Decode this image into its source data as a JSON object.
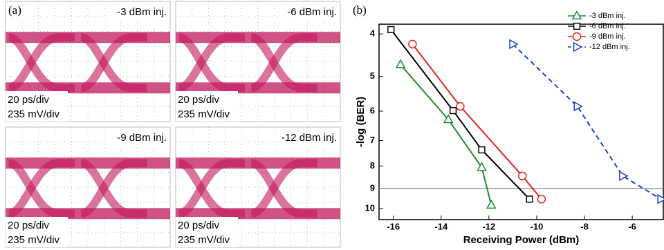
{
  "panel_a": {
    "label": "(a)",
    "eyes": [
      {
        "power": "-3 dBm inj.",
        "time_scale": "20 ps/div",
        "volt_scale": "235 mV/div"
      },
      {
        "power": "-6 dBm inj.",
        "time_scale": "20 ps/div",
        "volt_scale": "235 mV/div"
      },
      {
        "power": "-9 dBm inj.",
        "time_scale": "20 ps/div",
        "volt_scale": "235 mV/div"
      },
      {
        "power": "-12 dBm inj.",
        "time_scale": "20 ps/div",
        "volt_scale": "235 mV/div"
      }
    ]
  },
  "chart_data": {
    "type": "line",
    "label": "(b)",
    "xlabel": "Receiving Power (dBm)",
    "ylabel": "-log (BER)",
    "xlim": [
      -16.6,
      -4.7
    ],
    "xticks": [
      -16,
      -14,
      -12,
      -10,
      -8,
      -6
    ],
    "ylim": [
      3.8,
      10.6
    ],
    "yticks": [
      4,
      5,
      6,
      7,
      8,
      9,
      10
    ],
    "yscale": "log",
    "y_inverted": true,
    "reference_line": 9,
    "reference_color": "#999999",
    "legend": "upper right",
    "series": [
      {
        "name": "-3 dBm inj.",
        "color": "#1e8a28",
        "marker": "triangle-up",
        "dashed": false,
        "x": [
          -15.7,
          -13.7,
          -12.3,
          -11.9
        ],
        "values": [
          4.7,
          6.27,
          8.06,
          9.82
        ]
      },
      {
        "name": "-6 dBm inj.",
        "color": "#000000",
        "marker": "square",
        "dashed": false,
        "x": [
          -16.1,
          -13.5,
          -12.3,
          -10.3
        ],
        "values": [
          3.91,
          5.98,
          7.35,
          9.52
        ]
      },
      {
        "name": "-9 dBm inj.",
        "color": "#e8201c",
        "marker": "circle",
        "dashed": false,
        "x": [
          -15.2,
          -13.2,
          -10.6,
          -9.8
        ],
        "values": [
          4.22,
          5.85,
          8.43,
          9.52
        ]
      },
      {
        "name": "-12 dBm inj.",
        "color": "#1a3fd0",
        "marker": "triangle-right",
        "dashed": true,
        "x": [
          -11.0,
          -8.3,
          -6.4,
          -4.8
        ],
        "values": [
          4.22,
          5.85,
          8.43,
          9.52
        ]
      }
    ]
  }
}
